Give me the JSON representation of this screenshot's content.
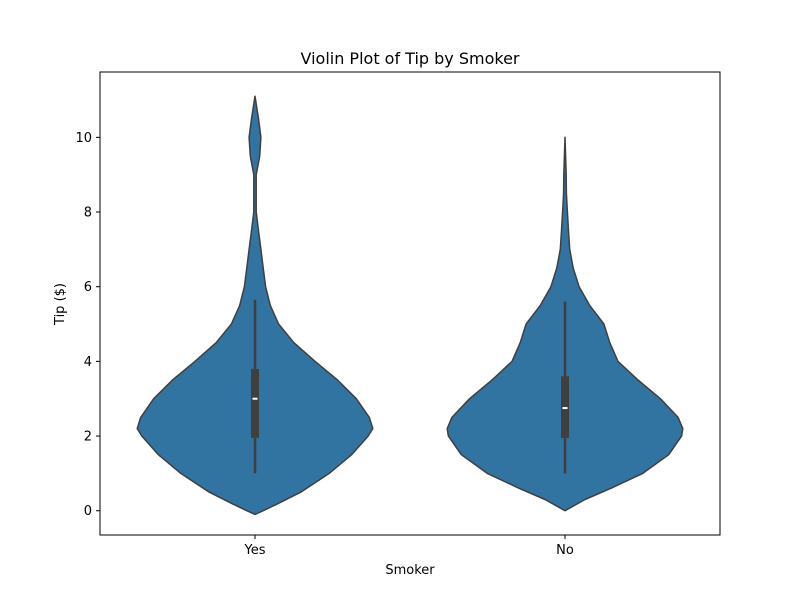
{
  "chart_data": {
    "type": "violin",
    "title": "Violin Plot of Tip by Smoker",
    "xlabel": "Smoker",
    "ylabel": "Tip ($)",
    "categories": [
      "Yes",
      "No"
    ],
    "ylim": [
      -0.65,
      11.75
    ],
    "yticks": [
      0,
      2,
      4,
      6,
      8,
      10
    ],
    "grid": false,
    "fill_color": "#3274a1",
    "edge_color": "#3f3f3f",
    "violins": [
      {
        "category": "Yes",
        "density_y": [
          -0.1,
          0.0,
          0.2,
          0.5,
          1.0,
          1.5,
          2.0,
          2.2,
          2.5,
          3.0,
          3.5,
          4.0,
          4.5,
          5.0,
          5.5,
          6.0,
          6.5,
          7.0,
          7.5,
          8.0,
          8.5,
          9.0,
          9.5,
          10.0,
          10.5,
          11.1
        ],
        "density_w": [
          0.0,
          0.07,
          0.2,
          0.39,
          0.63,
          0.82,
          0.96,
          1.0,
          0.97,
          0.86,
          0.7,
          0.51,
          0.33,
          0.2,
          0.13,
          0.09,
          0.07,
          0.05,
          0.03,
          0.01,
          0.01,
          0.01,
          0.04,
          0.05,
          0.03,
          0.0
        ],
        "whisker": [
          1.0,
          5.65
        ],
        "q1": 1.95,
        "median": 3.0,
        "q3": 3.8
      },
      {
        "category": "No",
        "density_y": [
          0.0,
          0.3,
          0.6,
          1.0,
          1.5,
          2.0,
          2.2,
          2.5,
          3.0,
          3.5,
          4.0,
          4.5,
          5.0,
          5.5,
          6.0,
          6.5,
          7.0,
          7.5,
          8.0,
          8.5,
          9.0,
          9.5,
          10.0
        ],
        "density_w": [
          0.0,
          0.17,
          0.39,
          0.66,
          0.88,
          0.99,
          1.0,
          0.96,
          0.81,
          0.62,
          0.45,
          0.38,
          0.33,
          0.21,
          0.12,
          0.07,
          0.04,
          0.03,
          0.02,
          0.012,
          0.01,
          0.005,
          0.0
        ],
        "whisker": [
          1.0,
          5.6
        ],
        "q1": 1.95,
        "median": 2.75,
        "q3": 3.6
      }
    ]
  }
}
